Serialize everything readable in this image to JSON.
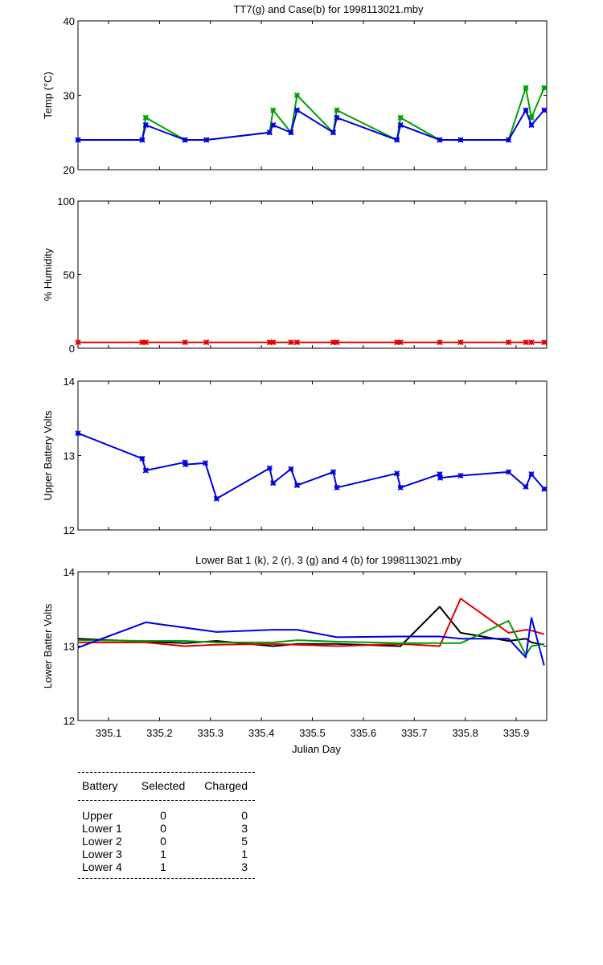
{
  "colors": {
    "green": "#00a000",
    "blue": "#0000e0",
    "red": "#e00000",
    "black": "#000000"
  },
  "chart_data": [
    {
      "type": "line",
      "title": "TT7(g) and Case(b) for 1998113021.mby",
      "xlabel": "",
      "ylabel": "Temp  (°C)",
      "xlim": [
        335.04,
        335.96
      ],
      "ylim": [
        20,
        40
      ],
      "yticks": [
        20,
        30,
        40
      ],
      "series": [
        {
          "name": "TT7",
          "color": "green",
          "markers": true,
          "x": [
            335.04,
            335.166,
            335.173,
            335.25,
            335.292,
            335.416,
            335.423,
            335.458,
            335.47,
            335.541,
            335.548,
            335.666,
            335.673,
            335.75,
            335.791,
            335.885,
            335.919,
            335.93,
            335.955
          ],
          "y": [
            24,
            24,
            27,
            24,
            24,
            25,
            28,
            25,
            30,
            25,
            28,
            24,
            27,
            24,
            24,
            24,
            31,
            27,
            31
          ]
        },
        {
          "name": "Case",
          "color": "blue",
          "markers": true,
          "x": [
            335.04,
            335.166,
            335.173,
            335.25,
            335.292,
            335.416,
            335.423,
            335.458,
            335.47,
            335.541,
            335.548,
            335.666,
            335.673,
            335.75,
            335.791,
            335.885,
            335.919,
            335.93,
            335.955
          ],
          "y": [
            24,
            24,
            26,
            24,
            24,
            25,
            26,
            25,
            28,
            25,
            27,
            24,
            26,
            24,
            24,
            24,
            28,
            26,
            28
          ]
        }
      ]
    },
    {
      "type": "line",
      "title": "",
      "xlabel": "",
      "ylabel": "% Humidity",
      "xlim": [
        335.04,
        335.96
      ],
      "ylim": [
        0,
        100
      ],
      "yticks": [
        0,
        50,
        100
      ],
      "series": [
        {
          "name": "Humidity",
          "color": "red",
          "markers": true,
          "x": [
            335.04,
            335.166,
            335.173,
            335.25,
            335.292,
            335.416,
            335.423,
            335.458,
            335.47,
            335.541,
            335.548,
            335.666,
            335.673,
            335.75,
            335.791,
            335.885,
            335.919,
            335.93,
            335.955
          ],
          "y": [
            4,
            4,
            4,
            4,
            4,
            4,
            4,
            4,
            4,
            4,
            4,
            4,
            4,
            4,
            4,
            4,
            4,
            4,
            4
          ]
        }
      ]
    },
    {
      "type": "line",
      "title": "",
      "xlabel": "",
      "ylabel": "Upper Battery Volts",
      "xlim": [
        335.04,
        335.96
      ],
      "ylim": [
        12,
        14
      ],
      "yticks": [
        12,
        13,
        14
      ],
      "series": [
        {
          "name": "Upper",
          "color": "blue",
          "markers": true,
          "x": [
            335.04,
            335.166,
            335.173,
            335.25,
            335.251,
            335.29,
            335.312,
            335.416,
            335.423,
            335.458,
            335.47,
            335.541,
            335.548,
            335.666,
            335.673,
            335.75,
            335.751,
            335.791,
            335.885,
            335.919,
            335.93,
            335.955
          ],
          "y": [
            13.3,
            12.96,
            12.8,
            12.91,
            12.88,
            12.9,
            12.42,
            12.83,
            12.63,
            12.82,
            12.6,
            12.78,
            12.57,
            12.76,
            12.57,
            12.75,
            12.7,
            12.73,
            12.78,
            12.58,
            12.75,
            12.55
          ]
        }
      ]
    },
    {
      "type": "line",
      "title": "Lower Bat 1 (k), 2 (r), 3 (g) and 4 (b) for 1998113021.mby",
      "xlabel": "Julian Day",
      "ylabel": "Lower Batter Volts",
      "xlim": [
        335.04,
        335.96
      ],
      "ylim": [
        12,
        14
      ],
      "yticks": [
        12,
        13,
        14
      ],
      "xticks": [
        "335.1",
        "335.2",
        "335.3",
        "335.4",
        "335.5",
        "335.6",
        "335.7",
        "335.8",
        "335.9"
      ],
      "series": [
        {
          "name": "Lower 1",
          "color": "black",
          "markers": false,
          "x": [
            335.04,
            335.173,
            335.25,
            335.312,
            335.423,
            335.47,
            335.548,
            335.673,
            335.75,
            335.791,
            335.885,
            335.919,
            335.93,
            335.955
          ],
          "y": [
            13.1,
            13.06,
            13.04,
            13.07,
            13.0,
            13.03,
            13.03,
            13.0,
            13.53,
            13.18,
            13.07,
            13.1,
            13.05,
            13.02
          ]
        },
        {
          "name": "Lower 2",
          "color": "red",
          "markers": false,
          "x": [
            335.04,
            335.173,
            335.25,
            335.312,
            335.423,
            335.47,
            335.548,
            335.673,
            335.75,
            335.791,
            335.885,
            335.919,
            335.93,
            335.955
          ],
          "y": [
            13.05,
            13.05,
            13.0,
            13.02,
            13.03,
            13.02,
            13.0,
            13.03,
            13.0,
            13.64,
            13.18,
            13.22,
            13.21,
            13.16
          ]
        },
        {
          "name": "Lower 3",
          "color": "green",
          "markers": false,
          "x": [
            335.04,
            335.173,
            335.25,
            335.312,
            335.423,
            335.47,
            335.548,
            335.673,
            335.75,
            335.791,
            335.885,
            335.919,
            335.93,
            335.955
          ],
          "y": [
            13.08,
            13.07,
            13.07,
            13.05,
            13.05,
            13.08,
            13.06,
            13.04,
            13.04,
            13.04,
            13.34,
            12.88,
            13.0,
            13.03
          ]
        },
        {
          "name": "Lower 4",
          "color": "blue",
          "markers": false,
          "x": [
            335.04,
            335.173,
            335.312,
            335.423,
            335.47,
            335.548,
            335.673,
            335.75,
            335.791,
            335.885,
            335.919,
            335.93,
            335.955
          ],
          "y": [
            12.98,
            13.32,
            13.19,
            13.22,
            13.22,
            13.12,
            13.13,
            13.13,
            13.1,
            13.1,
            12.85,
            13.38,
            12.74
          ]
        }
      ]
    }
  ],
  "summary": {
    "headers": {
      "battery": "Battery",
      "selected": "Selected",
      "charged": "Charged"
    },
    "rows": [
      {
        "battery": "Upper",
        "selected": "0",
        "charged": "0"
      },
      {
        "battery": "Lower 1",
        "selected": "0",
        "charged": "3"
      },
      {
        "battery": "Lower 2",
        "selected": "0",
        "charged": "5"
      },
      {
        "battery": "Lower 3",
        "selected": "1",
        "charged": "1"
      },
      {
        "battery": "Lower 4",
        "selected": "1",
        "charged": "3"
      }
    ]
  }
}
